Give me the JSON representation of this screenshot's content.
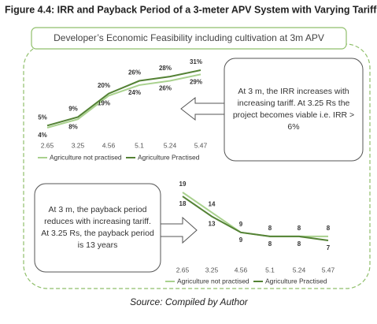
{
  "title": "Figure 4.4: IRR and Payback Period of a 3-meter APV System with Varying Tariffs",
  "subtitle": "Developer’s Economic Feasibility including cultivation at 3m APV",
  "source": "Source: Compiled by Author",
  "chart_data": [
    {
      "type": "line",
      "annotation": "At 3 m, the IRR increases with increasing tariff. At 3.25 Rs the project becomes viable i.e. IRR > 6%",
      "categories": [
        "2.65",
        "3.25",
        "4.56",
        "5.1",
        "5.24",
        "5.47"
      ],
      "series": [
        {
          "name": "Agriculture not practised",
          "color": "#a9d18e",
          "values": [
            4,
            8,
            19,
            24,
            26,
            29
          ],
          "value_labels": [
            "4%",
            "8%",
            "19%",
            "24%",
            "26%",
            "29%"
          ]
        },
        {
          "name": "Agriculture Practised",
          "color": "#548235",
          "values": [
            5,
            9,
            20,
            26,
            28,
            31
          ],
          "value_labels": [
            "5%",
            "9%",
            "20%",
            "26%",
            "28%",
            "31%"
          ]
        }
      ]
    },
    {
      "type": "line",
      "annotation": "At 3 m, the payback period reduces with increasing tariff. At 3.25 Rs, the payback period is 13 years",
      "categories": [
        "2.65",
        "3.25",
        "4.56",
        "5.1",
        "5.24",
        "5.47"
      ],
      "series": [
        {
          "name": "Agriculture not practised",
          "color": "#a9d18e",
          "values": [
            19,
            14,
            9,
            8,
            8,
            8
          ]
        },
        {
          "name": "Agriculture Practised",
          "color": "#548235",
          "values": [
            18,
            13,
            9,
            8,
            8,
            7
          ]
        }
      ]
    }
  ]
}
